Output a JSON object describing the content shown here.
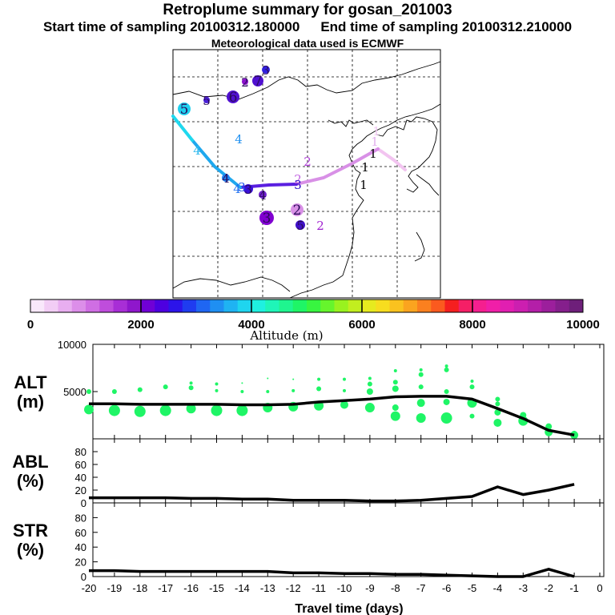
{
  "title": "Retroplume summary for gosan_201003",
  "sampling": {
    "start_label": "Start time of sampling 20100312.180000",
    "end_label": "End time of sampling 20100312.210000"
  },
  "met_label": "Meteorological data used is ECMWF",
  "colorbar": {
    "label": "Altitude (m)",
    "ticks": [
      "0",
      "2000",
      "4000",
      "6000",
      "8000",
      "10000"
    ],
    "colors": [
      "#f9e8fb",
      "#f2cdf5",
      "#e8aef0",
      "#dc8ee9",
      "#cf6ee3",
      "#bf4ddc",
      "#a82ed6",
      "#8f17cc",
      "#7000d6",
      "#4d00e0",
      "#2c14ea",
      "#1f3cf0",
      "#1f66f2",
      "#1f8ff2",
      "#1fb3f2",
      "#1fd5ef",
      "#1ff0e0",
      "#1ff5b8",
      "#1ff58f",
      "#1ff566",
      "#38f540",
      "#66f52c",
      "#99f21f",
      "#c2ee1f",
      "#e6ea1f",
      "#f7dd1f",
      "#fac21f",
      "#fba41f",
      "#fb801f",
      "#fb5a1f",
      "#f51f1f",
      "#f51f66",
      "#f51f8f",
      "#f01fa8",
      "#e11fb1",
      "#cc1fb0",
      "#b41fa8",
      "#9c1f9c",
      "#851f8c",
      "#6e1f7a"
    ]
  },
  "map": {
    "track": [
      {
        "label": "1",
        "color": "#f2c4f0"
      },
      {
        "label": "2",
        "color": "#d890e6"
      },
      {
        "label": "3",
        "color": "#5a1fe0"
      },
      {
        "label": "4",
        "color": "#1fa8ee"
      },
      {
        "label": "5",
        "color": "#1fd8ee"
      }
    ],
    "markers": [
      {
        "label": "1",
        "color": "#f0c8f2",
        "size": 0
      },
      {
        "label": "1",
        "color": "#e2b0ee",
        "size": 0
      },
      {
        "label": "1",
        "color": "#000000",
        "size": 0
      },
      {
        "label": "1",
        "color": "#000000",
        "size": 0
      },
      {
        "label": "1",
        "color": "#000000",
        "size": 0
      },
      {
        "label": "2",
        "color": "#b040d8",
        "size": 0
      },
      {
        "label": "2",
        "color": "#c060e0",
        "size": 0
      },
      {
        "label": "2",
        "color": "#d890e6",
        "size": 8
      },
      {
        "label": "2",
        "color": "#a020d0",
        "size": 0
      },
      {
        "label": "2",
        "color": "#8a10cc",
        "size": 4
      },
      {
        "label": "3",
        "color": "#3020e0",
        "size": 5
      },
      {
        "label": "3",
        "color": "#8000d0",
        "size": 9
      },
      {
        "label": "3",
        "color": "#3a10d8",
        "size": 6
      },
      {
        "label": "3",
        "color": "#1f50ee",
        "size": 0
      },
      {
        "label": "3",
        "color": "#3010c8",
        "size": 0
      },
      {
        "label": "4",
        "color": "#1f80f0",
        "size": 5
      },
      {
        "label": "4",
        "color": "#1f90f0",
        "size": 0
      },
      {
        "label": "4",
        "color": "#7020d0",
        "size": 5
      },
      {
        "label": "4",
        "color": "#2ab8ee",
        "size": 0
      },
      {
        "label": "4",
        "color": "#1f70f0",
        "size": 0
      },
      {
        "label": "5",
        "color": "#1fd0ee",
        "size": 8
      },
      {
        "label": "5",
        "color": "#4a20d8",
        "size": 4
      },
      {
        "label": "5",
        "color": "#4010c8",
        "size": 6
      },
      {
        "label": "6",
        "color": "#5010d0",
        "size": 8
      },
      {
        "label": "7",
        "color": "#5010d0",
        "size": 7
      }
    ]
  },
  "chart_data": [
    {
      "type": "line",
      "name": "ALT",
      "ylabel": "ALT\n(m)",
      "ylabel_lines": [
        "ALT",
        "(m)"
      ],
      "ylim": [
        0,
        10000
      ],
      "yticks": [
        "5000",
        "10000"
      ],
      "x": [
        -20,
        -19,
        -18,
        -17,
        -16,
        -15,
        -14,
        -13,
        -12,
        -11,
        -10,
        -9,
        -8,
        -7,
        -6,
        -5,
        -4,
        -3,
        -2,
        -1
      ],
      "series": [
        {
          "name": "mean altitude",
          "color": "#000000",
          "values": [
            3700,
            3700,
            3650,
            3650,
            3650,
            3650,
            3600,
            3600,
            3650,
            3900,
            4050,
            4200,
            4450,
            4500,
            4500,
            4200,
            3200,
            2150,
            900,
            400
          ]
        }
      ],
      "scatter_color": "#1ff566",
      "scatter": [
        {
          "x": -20,
          "y": [
            3100,
            5000
          ],
          "size": [
            6,
            3
          ]
        },
        {
          "x": -19,
          "y": [
            3000,
            5000
          ],
          "size": [
            7,
            3
          ]
        },
        {
          "x": -18,
          "y": [
            2900,
            5200
          ],
          "size": [
            7,
            3
          ]
        },
        {
          "x": -17,
          "y": [
            3000,
            5500
          ],
          "size": [
            7,
            3
          ]
        },
        {
          "x": -16,
          "y": [
            3200,
            5400,
            5900
          ],
          "size": [
            6,
            3,
            2
          ]
        },
        {
          "x": -15,
          "y": [
            3000,
            5100,
            5800
          ],
          "size": [
            7,
            2,
            2
          ]
        },
        {
          "x": -14,
          "y": [
            3000,
            5000,
            5900
          ],
          "size": [
            7,
            2,
            1
          ]
        },
        {
          "x": -13,
          "y": [
            3300,
            5000,
            6400
          ],
          "size": [
            6,
            2,
            1
          ]
        },
        {
          "x": -12,
          "y": [
            3400,
            5100,
            6300
          ],
          "size": [
            6,
            2,
            1
          ]
        },
        {
          "x": -11,
          "y": [
            3500,
            5300,
            6300
          ],
          "size": [
            6,
            3,
            2
          ]
        },
        {
          "x": -10,
          "y": [
            3600,
            5100,
            6300
          ],
          "size": [
            5,
            2,
            2
          ]
        },
        {
          "x": -9,
          "y": [
            3300,
            5000,
            5800,
            6400
          ],
          "size": [
            6,
            4,
            3,
            2
          ]
        },
        {
          "x": -8,
          "y": [
            2400,
            3300,
            5300,
            6000,
            7200
          ],
          "size": [
            6,
            4,
            4,
            3,
            2
          ]
        },
        {
          "x": -7,
          "y": [
            2200,
            3800,
            5500,
            6800,
            7300
          ],
          "size": [
            6,
            5,
            3,
            3,
            2
          ]
        },
        {
          "x": -6,
          "y": [
            2200,
            3900,
            5000,
            7300,
            7700
          ],
          "size": [
            7,
            4,
            3,
            3,
            2
          ]
        },
        {
          "x": -5,
          "y": [
            2400,
            3800,
            5500,
            6100
          ],
          "size": [
            3,
            6,
            3,
            2
          ]
        },
        {
          "x": -4,
          "y": [
            1700,
            2800,
            3700,
            4200
          ],
          "size": [
            5,
            4,
            3,
            3
          ]
        },
        {
          "x": -3,
          "y": [
            1900,
            2500
          ],
          "size": [
            6,
            4
          ]
        },
        {
          "x": -2,
          "y": [
            700,
            1300
          ],
          "size": [
            5,
            4
          ]
        },
        {
          "x": -1,
          "y": [
            400,
            600
          ],
          "size": [
            5,
            3
          ]
        }
      ]
    },
    {
      "type": "line",
      "name": "ABL",
      "ylabel": "ABL\n(%)",
      "ylabel_lines": [
        "ABL",
        "(%)"
      ],
      "ylim": [
        0,
        100
      ],
      "yticks": [
        "0",
        "20",
        "40",
        "60",
        "80"
      ],
      "x": [
        -20,
        -19,
        -18,
        -17,
        -16,
        -15,
        -14,
        -13,
        -12,
        -11,
        -10,
        -9,
        -8,
        -7,
        -6,
        -5,
        -4,
        -3,
        -2,
        -1
      ],
      "series": [
        {
          "name": "ABL fraction",
          "color": "#000000",
          "values": [
            8,
            8,
            8,
            8,
            7,
            7,
            6,
            6,
            4,
            4,
            4,
            3,
            3,
            4,
            7,
            10,
            25,
            13,
            20,
            29
          ]
        }
      ]
    },
    {
      "type": "line",
      "name": "STR",
      "ylabel": "STR\n(%)",
      "ylabel_lines": [
        "STR",
        "(%)"
      ],
      "ylim": [
        0,
        100
      ],
      "yticks": [
        "0",
        "20",
        "40",
        "60",
        "80"
      ],
      "xlabel": "Travel time (days)",
      "xticks": [
        "-20",
        "-19",
        "-18",
        "-17",
        "-16",
        "-15",
        "-14",
        "-13",
        "-12",
        "-11",
        "-10",
        "-9",
        "-8",
        "-7",
        "-6",
        "-5",
        "-4",
        "-3",
        "-2",
        "-1",
        "0"
      ],
      "x": [
        -20,
        -19,
        -18,
        -17,
        -16,
        -15,
        -14,
        -13,
        -12,
        -11,
        -10,
        -9,
        -8,
        -7,
        -6,
        -5,
        -4,
        -3,
        -2,
        -1
      ],
      "series": [
        {
          "name": "stratosphere fraction",
          "color": "#000000",
          "values": [
            8,
            8,
            7,
            7,
            7,
            7,
            7,
            7,
            5,
            5,
            4,
            4,
            3,
            3,
            2,
            1,
            0,
            0,
            10,
            0
          ]
        }
      ]
    }
  ]
}
